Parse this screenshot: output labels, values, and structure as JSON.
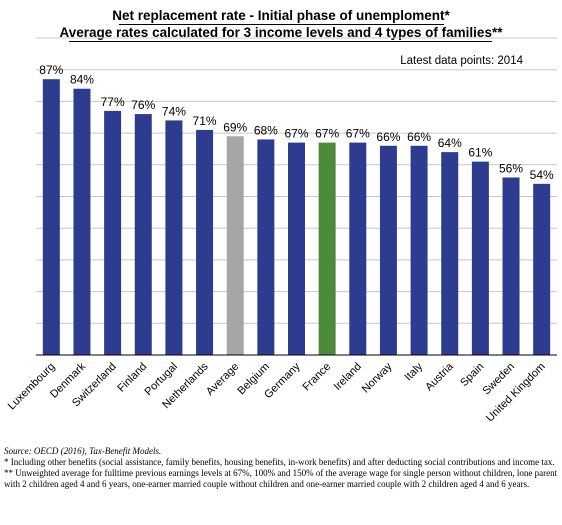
{
  "titles": {
    "line1": "Net replacement rate - Initial phase of unemploment*",
    "line2": "Average rates calculated for 3 income levels and 4 types of families**"
  },
  "annotation": "Latest data points: 2014",
  "notes": {
    "source": "Source: OECD (2016), Tax-Benefit Models.",
    "note1": "* Including other benefits (social assistance, family benefits, housing benefits, in-work benefits) and after deducting social contributions and income tax.",
    "note2": "** Unweighted average for fulltime previous earnings levels at 67%, 100% and 150% of the average wage for single person without children, lone parent with 2 children aged 4 and 6 years, one-earner married couple without children and one-earner married couple with 2 children aged 4 and 6 years."
  },
  "colors": {
    "default_bar": "#2E3C8F",
    "average_bar": "#A6A6A6",
    "highlight_bar": "#4E8A3B",
    "gridline": "#C8C8C8"
  },
  "chart_data": {
    "type": "bar",
    "categories": [
      "Luxembourg",
      "Denmark",
      "Switzerland",
      "Finland",
      "Portugal",
      "Netherlands",
      "Average",
      "Belgium",
      "Germany",
      "France",
      "Ireland",
      "Norway",
      "Italy",
      "Austria",
      "Spain",
      "Sweden",
      "United Kingdom"
    ],
    "values": [
      87,
      84,
      77,
      76,
      74,
      71,
      69,
      68,
      67,
      67,
      67,
      66,
      66,
      64,
      61,
      56,
      54
    ],
    "data_labels": [
      "87%",
      "84%",
      "77%",
      "76%",
      "74%",
      "71%",
      "69%",
      "68%",
      "67%",
      "67%",
      "67%",
      "66%",
      "66%",
      "64%",
      "61%",
      "56%",
      "54%"
    ],
    "bar_colors": [
      "default",
      "default",
      "default",
      "default",
      "default",
      "default",
      "average",
      "default",
      "default",
      "highlight",
      "default",
      "default",
      "default",
      "default",
      "default",
      "default",
      "default"
    ],
    "ylim": [
      0,
      100
    ],
    "gridlines": [
      10,
      20,
      30,
      40,
      50,
      60,
      70,
      80,
      90,
      100
    ],
    "grid": true,
    "xlabel": "",
    "ylabel": ""
  }
}
